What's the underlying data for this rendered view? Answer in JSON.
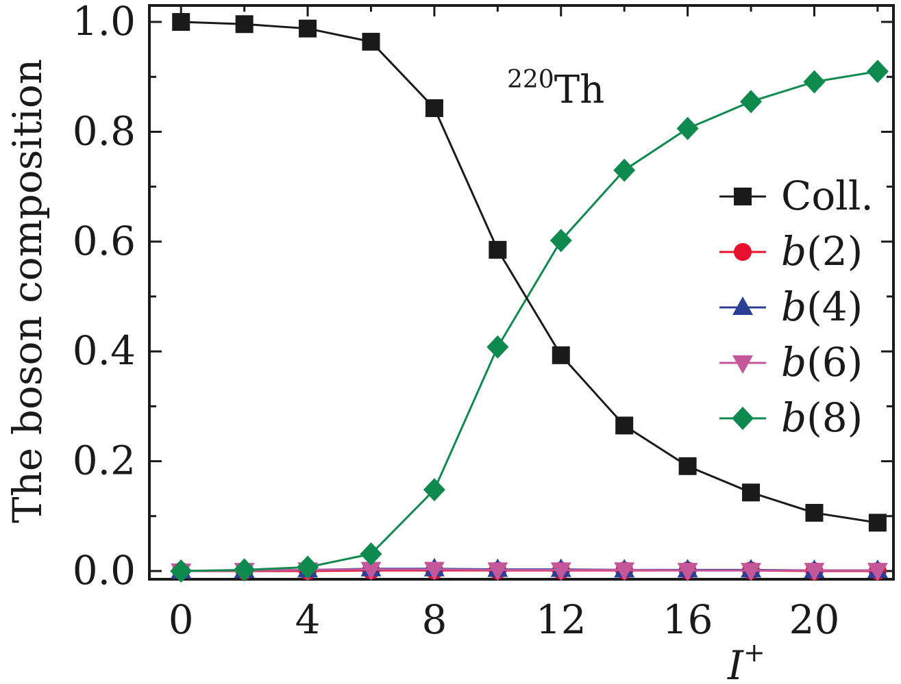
{
  "chart_data": {
    "type": "line",
    "annotation": {
      "sup": "220",
      "text": "Th"
    },
    "xlabel": {
      "text": "I",
      "sup": "+"
    },
    "ylabel": "The boson composition",
    "xlim": [
      -1,
      22.5
    ],
    "ylim": [
      -0.015,
      1.03
    ],
    "xticks": [
      0,
      4,
      8,
      12,
      16,
      20
    ],
    "xtick_labels": [
      "0",
      "4",
      "8",
      "12",
      "16",
      "20"
    ],
    "yticks": [
      0.0,
      0.2,
      0.4,
      0.6,
      0.8,
      1.0
    ],
    "ytick_labels": [
      "0.0",
      "0.2",
      "0.4",
      "0.6",
      "0.8",
      "1.0"
    ],
    "grid": false,
    "legend_position": "right",
    "x": [
      0,
      2,
      4,
      6,
      8,
      10,
      12,
      14,
      16,
      18,
      20,
      22
    ],
    "series": [
      {
        "name": "Coll.",
        "name_suffix": "",
        "marker": "square",
        "color": "#1a1a1a",
        "values": [
          1.0,
          0.996,
          0.988,
          0.964,
          0.843,
          0.585,
          0.393,
          0.265,
          0.191,
          0.143,
          0.106,
          0.088
        ]
      },
      {
        "name": "b",
        "name_suffix": "(2)",
        "marker": "circle",
        "color": "#e8112d",
        "values": [
          0.0,
          0.0,
          0.0,
          0.001,
          0.001,
          0.001,
          0.001,
          0.001,
          0.001,
          0.001,
          0.0,
          0.0
        ]
      },
      {
        "name": "b",
        "name_suffix": "(4)",
        "marker": "triangle-up",
        "color": "#2b3f97",
        "values": [
          0.0,
          0.001,
          0.002,
          0.004,
          0.004,
          0.003,
          0.003,
          0.002,
          0.002,
          0.002,
          0.001,
          0.001
        ]
      },
      {
        "name": "b",
        "name_suffix": "(6)",
        "marker": "triangle-down",
        "color": "#c4569a",
        "values": [
          0.0,
          0.001,
          0.002,
          0.003,
          0.003,
          0.002,
          0.002,
          0.002,
          0.001,
          0.001,
          0.001,
          0.001
        ]
      },
      {
        "name": "b",
        "name_suffix": "(8)",
        "marker": "diamond",
        "color": "#0e8a4f",
        "values": [
          0.0,
          0.002,
          0.007,
          0.031,
          0.148,
          0.408,
          0.602,
          0.73,
          0.806,
          0.855,
          0.891,
          0.91
        ]
      }
    ]
  }
}
